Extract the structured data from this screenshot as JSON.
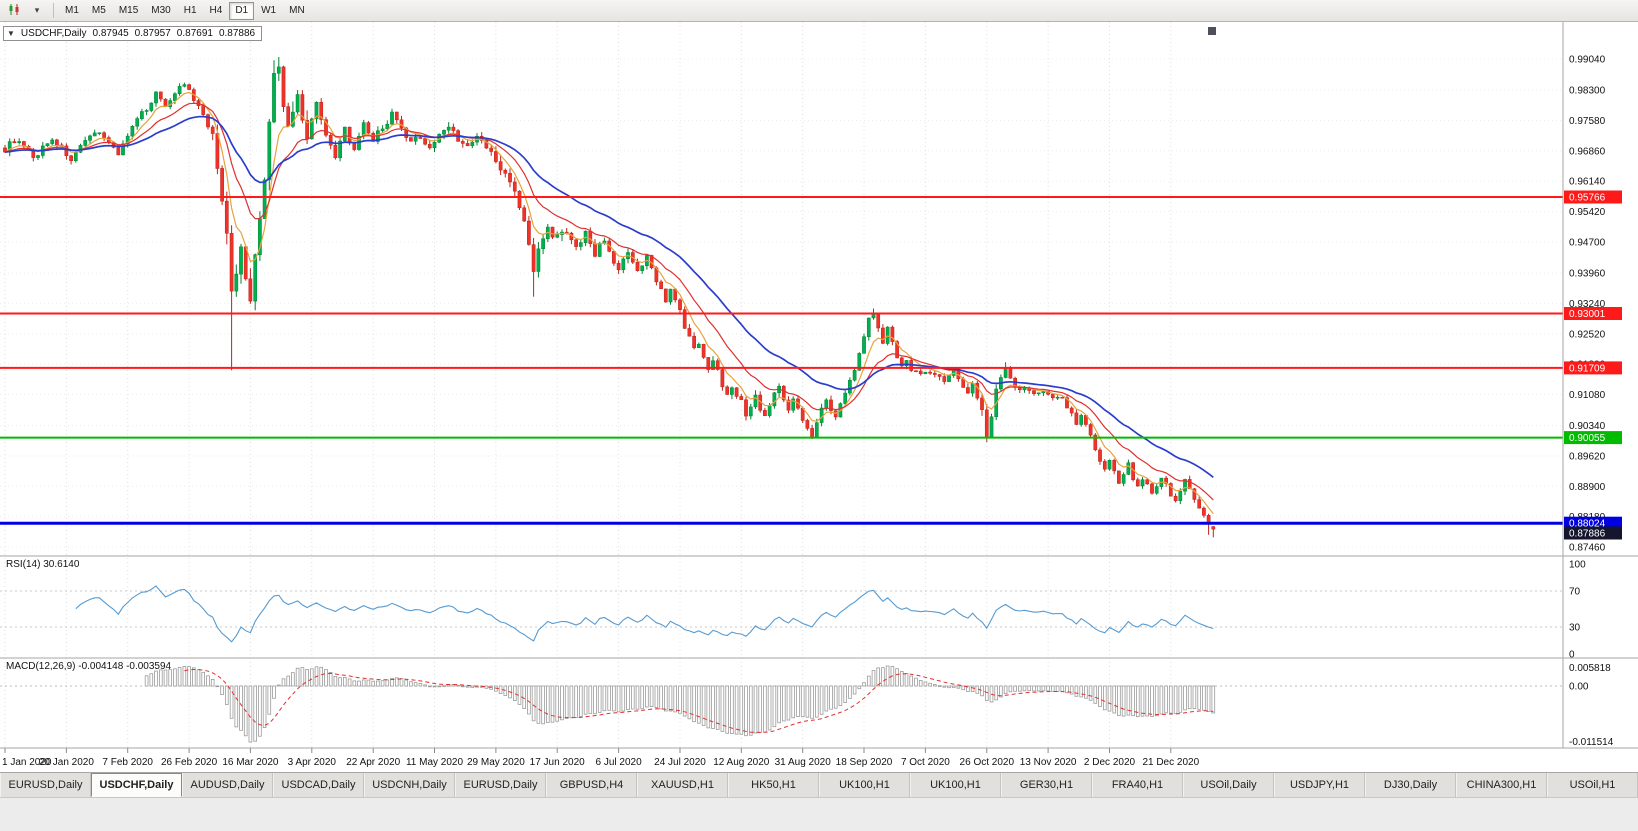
{
  "toolbar": {
    "timeframes": [
      "M1",
      "M5",
      "M15",
      "M30",
      "H1",
      "H4",
      "D1",
      "W1",
      "MN"
    ],
    "active_timeframe": "D1",
    "chart_type_icon": "candlestick-chart-icon",
    "dropdown_icon": "caret-down-icon",
    "caret_glyph": "▾"
  },
  "symbol_info": {
    "collapse_glyph": "▼",
    "title": "USDCHF,Daily",
    "open": "0.87945",
    "high": "0.87957",
    "low": "0.87691",
    "close": "0.87886"
  },
  "price_axis": {
    "ticks": [
      "0.99040",
      "0.98300",
      "0.97580",
      "0.96860",
      "0.96140",
      "0.95420",
      "0.94700",
      "0.93960",
      "0.93240",
      "0.92520",
      "0.91800",
      "0.91080",
      "0.90340",
      "0.89620",
      "0.88900",
      "0.88180",
      "0.87460"
    ]
  },
  "rsi_panel": {
    "title": "RSI(14) 30.6140",
    "axis_labels": [
      "100",
      "70",
      "30",
      "0"
    ],
    "levels": [
      70,
      30
    ]
  },
  "macd_panel": {
    "title": "MACD(12,26,9) -0.004148 -0.003594",
    "axis_labels": [
      "0.005818",
      "0.00",
      "-0.011514"
    ]
  },
  "date_axis": {
    "labels": [
      {
        "text": "1 Jan 2020",
        "day": 0
      },
      {
        "text": "20 Jan 2020",
        "day": 13
      },
      {
        "text": "7 Feb 2020",
        "day": 26
      },
      {
        "text": "26 Feb 2020",
        "day": 39
      },
      {
        "text": "16 Mar 2020",
        "day": 52
      },
      {
        "text": "3 Apr 2020",
        "day": 65
      },
      {
        "text": "22 Apr 2020",
        "day": 78
      },
      {
        "text": "11 May 2020",
        "day": 91
      },
      {
        "text": "29 May 2020",
        "day": 104
      },
      {
        "text": "17 Jun 2020",
        "day": 117
      },
      {
        "text": "6 Jul 2020",
        "day": 130
      },
      {
        "text": "24 Jul 2020",
        "day": 143
      },
      {
        "text": "12 Aug 2020",
        "day": 156
      },
      {
        "text": "31 Aug 2020",
        "day": 169
      },
      {
        "text": "18 Sep 2020",
        "day": 182
      },
      {
        "text": "7 Oct 2020",
        "day": 195
      },
      {
        "text": "26 Oct 2020",
        "day": 208
      },
      {
        "text": "13 Nov 2020",
        "day": 221
      },
      {
        "text": "2 Dec 2020",
        "day": 234
      },
      {
        "text": "21 Dec 2020",
        "day": 247
      }
    ]
  },
  "tabs": {
    "active_index": 1,
    "items": [
      "EURUSD,Daily",
      "USDCHF,Daily",
      "AUDUSD,Daily",
      "USDCAD,Daily",
      "USDCNH,Daily",
      "EURUSD,Daily",
      "GBPUSD,H4",
      "XAUUSD,H1",
      "HK50,H1",
      "UK100,H1",
      "UK100,H1",
      "GER30,H1",
      "FRA40,H1",
      "USOil,Daily",
      "USDJPY,H1",
      "DJ30,Daily",
      "CHINA300,H1",
      "USOil,H1"
    ]
  },
  "chart_data": {
    "type": "candlestick",
    "symbol": "USDCHF",
    "timeframe": "Daily",
    "bars_total": 257,
    "price_axis_range": [
      0.8746,
      0.9904
    ],
    "horizontal_lines": [
      {
        "price": 0.95766,
        "label": "0.95766",
        "color": "#ff1a1a",
        "width": 2
      },
      {
        "price": 0.93001,
        "label": "0.93001",
        "color": "#ff1a1a",
        "width": 2
      },
      {
        "price": 0.91709,
        "label": "0.91709",
        "color": "#ff1a1a",
        "width": 2
      },
      {
        "price": 0.90055,
        "label": "0.90055",
        "color": "#00bb00",
        "width": 2
      },
      {
        "price": 0.88024,
        "label": "0.88024",
        "color": "#0000e0",
        "width": 3
      }
    ],
    "current_price": {
      "value": 0.87886,
      "label": "0.87886",
      "badge_color": "#15152e"
    },
    "current_bar": {
      "open": 0.87945,
      "high": 0.87957,
      "low": 0.87691,
      "close": 0.87886
    },
    "moving_averages": [
      {
        "period": 6,
        "color": "#e6a33c"
      },
      {
        "period": 14,
        "color": "#e03030"
      },
      {
        "period": 30,
        "color": "#2b3ecb"
      }
    ],
    "indicators": {
      "rsi": {
        "period": 14,
        "current": 30.614,
        "color": "#569bd2"
      },
      "macd": {
        "fast": 12,
        "slow": 26,
        "signal": 9,
        "current_macd": -0.004148,
        "current_signal": -0.003594,
        "hist_color": "#9b9b9b",
        "signal_color": "#e03030"
      }
    },
    "candle_colors": {
      "up": "#00b050",
      "up_border": "#00832f",
      "down": "#f03228",
      "down_border": "#bb241c"
    },
    "close_anchors": [
      [
        0,
        0.969
      ],
      [
        2,
        0.9712
      ],
      [
        4,
        0.9694
      ],
      [
        6,
        0.9668
      ],
      [
        8,
        0.9694
      ],
      [
        10,
        0.9716
      ],
      [
        12,
        0.9692
      ],
      [
        14,
        0.9666
      ],
      [
        16,
        0.9692
      ],
      [
        18,
        0.9716
      ],
      [
        20,
        0.9736
      ],
      [
        22,
        0.9704
      ],
      [
        24,
        0.9682
      ],
      [
        26,
        0.9722
      ],
      [
        28,
        0.9758
      ],
      [
        30,
        0.9788
      ],
      [
        32,
        0.9822
      ],
      [
        34,
        0.9795
      ],
      [
        36,
        0.9825
      ],
      [
        38,
        0.9846
      ],
      [
        40,
        0.9805
      ],
      [
        42,
        0.9772
      ],
      [
        44,
        0.971
      ],
      [
        45,
        0.9655
      ],
      [
        46,
        0.9585
      ],
      [
        47,
        0.95
      ],
      [
        48,
        0.934
      ],
      [
        49,
        0.9405
      ],
      [
        50,
        0.9455
      ],
      [
        51,
        0.9392
      ],
      [
        52,
        0.9345
      ],
      [
        53,
        0.9425
      ],
      [
        54,
        0.9525
      ],
      [
        55,
        0.9625
      ],
      [
        56,
        0.9755
      ],
      [
        57,
        0.9858
      ],
      [
        58,
        0.9875
      ],
      [
        59,
        0.9795
      ],
      [
        60,
        0.9738
      ],
      [
        61,
        0.9782
      ],
      [
        62,
        0.9822
      ],
      [
        63,
        0.9772
      ],
      [
        64,
        0.9722
      ],
      [
        65,
        0.9762
      ],
      [
        66,
        0.98
      ],
      [
        67,
        0.9768
      ],
      [
        68,
        0.973
      ],
      [
        70,
        0.9665
      ],
      [
        72,
        0.974
      ],
      [
        74,
        0.9682
      ],
      [
        76,
        0.9745
      ],
      [
        78,
        0.9712
      ],
      [
        80,
        0.9742
      ],
      [
        82,
        0.9772
      ],
      [
        84,
        0.9735
      ],
      [
        86,
        0.9702
      ],
      [
        88,
        0.9722
      ],
      [
        90,
        0.9692
      ],
      [
        92,
        0.9722
      ],
      [
        94,
        0.9748
      ],
      [
        96,
        0.9715
      ],
      [
        98,
        0.9692
      ],
      [
        100,
        0.9718
      ],
      [
        102,
        0.9695
      ],
      [
        104,
        0.9662
      ],
      [
        106,
        0.9625
      ],
      [
        108,
        0.959
      ],
      [
        110,
        0.952
      ],
      [
        111,
        0.9455
      ],
      [
        112,
        0.9412
      ],
      [
        114,
        0.9482
      ],
      [
        115,
        0.9512
      ],
      [
        116,
        0.9472
      ],
      [
        118,
        0.9488
      ],
      [
        120,
        0.9482
      ],
      [
        121,
        0.9452
      ],
      [
        123,
        0.9492
      ],
      [
        125,
        0.9442
      ],
      [
        127,
        0.9478
      ],
      [
        129,
        0.9425
      ],
      [
        130,
        0.9402
      ],
      [
        132,
        0.9442
      ],
      [
        134,
        0.9395
      ],
      [
        136,
        0.9432
      ],
      [
        138,
        0.9382
      ],
      [
        140,
        0.9332
      ],
      [
        141,
        0.9352
      ],
      [
        142,
        0.933
      ],
      [
        143,
        0.9302
      ],
      [
        144,
        0.9272
      ],
      [
        145,
        0.9242
      ],
      [
        146,
        0.9212
      ],
      [
        147,
        0.9232
      ],
      [
        148,
        0.9202
      ],
      [
        149,
        0.9172
      ],
      [
        150,
        0.9188
      ],
      [
        151,
        0.9162
      ],
      [
        152,
        0.9132
      ],
      [
        153,
        0.9112
      ],
      [
        154,
        0.9132
      ],
      [
        155,
        0.9112
      ],
      [
        156,
        0.9088
      ],
      [
        157,
        0.9062
      ],
      [
        158,
        0.9082
      ],
      [
        159,
        0.9102
      ],
      [
        160,
        0.9078
      ],
      [
        161,
        0.9058
      ],
      [
        162,
        0.9082
      ],
      [
        163,
        0.9108
      ],
      [
        164,
        0.9128
      ],
      [
        165,
        0.9102
      ],
      [
        166,
        0.9078
      ],
      [
        167,
        0.9092
      ],
      [
        168,
        0.9072
      ],
      [
        169,
        0.9052
      ],
      [
        170,
        0.9032
      ],
      [
        171,
        0.9012
      ],
      [
        172,
        0.9042
      ],
      [
        173,
        0.9072
      ],
      [
        174,
        0.9092
      ],
      [
        175,
        0.9072
      ],
      [
        176,
        0.9052
      ],
      [
        177,
        0.9082
      ],
      [
        178,
        0.9112
      ],
      [
        179,
        0.9142
      ],
      [
        180,
        0.9172
      ],
      [
        181,
        0.9212
      ],
      [
        182,
        0.9252
      ],
      [
        183,
        0.9286
      ],
      [
        184,
        0.93
      ],
      [
        185,
        0.9272
      ],
      [
        186,
        0.9232
      ],
      [
        187,
        0.9262
      ],
      [
        188,
        0.9232
      ],
      [
        189,
        0.9202
      ],
      [
        190,
        0.9172
      ],
      [
        191,
        0.9192
      ],
      [
        192,
        0.9166
      ],
      [
        194,
        0.9162
      ],
      [
        196,
        0.9156
      ],
      [
        198,
        0.9152
      ],
      [
        199,
        0.9132
      ],
      [
        200,
        0.9152
      ],
      [
        201,
        0.9172
      ],
      [
        202,
        0.9152
      ],
      [
        204,
        0.9112
      ],
      [
        205,
        0.9132
      ],
      [
        206,
        0.9106
      ],
      [
        207,
        0.9062
      ],
      [
        208,
        0.9012
      ],
      [
        209,
        0.9056
      ],
      [
        210,
        0.9112
      ],
      [
        211,
        0.9142
      ],
      [
        212,
        0.9162
      ],
      [
        214,
        0.9122
      ],
      [
        216,
        0.9122
      ],
      [
        218,
        0.9116
      ],
      [
        220,
        0.9112
      ],
      [
        222,
        0.9102
      ],
      [
        224,
        0.9102
      ],
      [
        226,
        0.9062
      ],
      [
        227,
        0.9042
      ],
      [
        228,
        0.9062
      ],
      [
        230,
        0.9012
      ],
      [
        231,
        0.8982
      ],
      [
        232,
        0.8952
      ],
      [
        233,
        0.8932
      ],
      [
        234,
        0.8952
      ],
      [
        235,
        0.8922
      ],
      [
        236,
        0.8902
      ],
      [
        237,
        0.8922
      ],
      [
        238,
        0.8942
      ],
      [
        239,
        0.8912
      ],
      [
        240,
        0.8892
      ],
      [
        241,
        0.8912
      ],
      [
        242,
        0.8892
      ],
      [
        243,
        0.8872
      ],
      [
        244,
        0.8892
      ],
      [
        245,
        0.8912
      ],
      [
        246,
        0.8892
      ],
      [
        247,
        0.8872
      ],
      [
        248,
        0.8852
      ],
      [
        249,
        0.8882
      ],
      [
        250,
        0.8902
      ],
      [
        251,
        0.8882
      ],
      [
        252,
        0.8862
      ],
      [
        253,
        0.8842
      ],
      [
        254,
        0.8822
      ],
      [
        255,
        0.8802
      ],
      [
        256,
        0.87886
      ]
    ],
    "wick_overrides": [
      {
        "day": 48,
        "low": 0.9165
      },
      {
        "day": 57,
        "high": 0.9901
      },
      {
        "day": 58,
        "high": 0.9904
      },
      {
        "day": 112,
        "low": 0.934
      },
      {
        "day": 171,
        "low": 0.9002
      },
      {
        "day": 184,
        "high": 0.9312
      },
      {
        "day": 208,
        "low": 0.8995
      },
      {
        "day": 255,
        "low": 0.8775
      }
    ],
    "volatility_zones": [
      [
        0,
        43,
        0.0016
      ],
      [
        44,
        64,
        0.0044
      ],
      [
        65,
        103,
        0.002
      ],
      [
        104,
        118,
        0.0028
      ],
      [
        119,
        145,
        0.0018
      ],
      [
        146,
        162,
        0.002
      ],
      [
        163,
        206,
        0.0017
      ],
      [
        207,
        212,
        0.0026
      ],
      [
        213,
        247,
        0.0014
      ],
      [
        248,
        256,
        0.0016
      ]
    ]
  }
}
